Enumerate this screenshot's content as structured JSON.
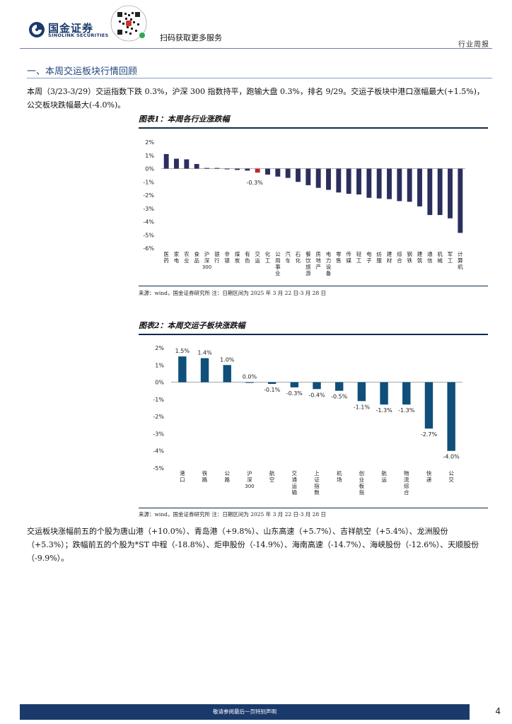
{
  "header": {
    "logo_cn": "国金证券",
    "logo_en": "SINOLINK SECURITIES",
    "scan_text": "扫码获取更多服务",
    "report_type": "行业周报"
  },
  "section": {
    "dash": "一、",
    "title": "本周交运板块行情回顾"
  },
  "paragraph1": "本周（3/23-3/29）交运指数下跌 0.3%，沪深 300 指数持平，跑输大盘 0.3%，排名 9/29。交运子板块中港口涨幅最大(+1.5%)，公交板块跌幅最大(-4.0%)。",
  "figure1": {
    "title": "图表1：本周各行业涨跌幅",
    "source": "来源：wind，国金证券研究所   注：日期区间为 2025 年 3 月 22 日-3 月 28 日"
  },
  "figure2": {
    "title": "图表2：本周交运子板块涨跌幅",
    "source": "来源：wind，国金证券研究所   注：日期区间为 2025 年 3 月 22 日-3 月 28 日"
  },
  "paragraph2": "交运板块涨幅前五的个股为唐山港（+10.0%）、青岛港（+9.8%）、山东高速（+5.7%）、吉祥航空（+5.4%）、龙洲股份（+5.3%）；跌幅前五的个股为*ST 中程（-18.8%）、炬申股份（-14.9%）、海南高速（-14.7%）、海峡股份（-12.6%）、天顺股份（-9.9%）。",
  "footer": {
    "disclaimer": "敬请参阅最后一页特别声明",
    "page": "4"
  },
  "colors": {
    "navy": "#2b2f5c",
    "highlight": "#c0262d",
    "teal": "#0f4f7a",
    "brand": "#1a3a6b"
  },
  "chart_data": [
    {
      "type": "bar",
      "title": "图表1：本周各行业涨跌幅",
      "categories": [
        "医药",
        "家电",
        "农业",
        "食品",
        "沪深300",
        "银行",
        "非银",
        "煤炭",
        "有色",
        "交运",
        "化工",
        "公用事业",
        "汽车",
        "石化",
        "餐饮旅游",
        "房地产",
        "电力设备",
        "零售",
        "传媒",
        "轻工",
        "电子",
        "纺服",
        "建材",
        "综合",
        "钢铁",
        "建筑",
        "通信",
        "机械",
        "军工",
        "计算机"
      ],
      "values": [
        1.1,
        0.75,
        0.7,
        0.35,
        0.05,
        0.05,
        -0.05,
        -0.1,
        -0.15,
        -0.3,
        -0.45,
        -0.6,
        -0.7,
        -1.0,
        -1.25,
        -1.45,
        -1.6,
        -1.8,
        -1.9,
        -1.95,
        -2.2,
        -2.25,
        -2.3,
        -2.45,
        -2.5,
        -2.85,
        -3.5,
        -3.5,
        -3.75,
        -4.85
      ],
      "highlight_index": 9,
      "data_labels": {
        "9": "-0.3%"
      },
      "yticks": [
        "2%",
        "1%",
        "0%",
        "-1%",
        "-2%",
        "-3%",
        "-4%",
        "-5%",
        "-6%"
      ],
      "ylim": [
        -6,
        2
      ]
    },
    {
      "type": "bar",
      "title": "图表2：本周交运子板块涨跌幅",
      "categories": [
        "港口",
        "铁路",
        "公路",
        "沪深300",
        "航空",
        "交通运输",
        "上证指数",
        "机场",
        "创业板指",
        "航运",
        "物流综合",
        "快递",
        "公交"
      ],
      "values": [
        1.5,
        1.4,
        1.0,
        0.0,
        -0.1,
        -0.3,
        -0.4,
        -0.5,
        -1.1,
        -1.3,
        -1.3,
        -2.7,
        -4.0
      ],
      "labels": [
        "1.5%",
        "1.4%",
        "1.0%",
        "0.0%",
        "-0.1%",
        "-0.3%",
        "-0.4%",
        "-0.5%",
        "-1.1%",
        "-1.3%",
        "-1.3%",
        "-2.7%",
        "-4.0%"
      ],
      "yticks": [
        "2%",
        "1%",
        "0%",
        "-1%",
        "-2%",
        "-3%",
        "-4%",
        "-5%"
      ],
      "ylim": [
        -5,
        2
      ]
    }
  ]
}
